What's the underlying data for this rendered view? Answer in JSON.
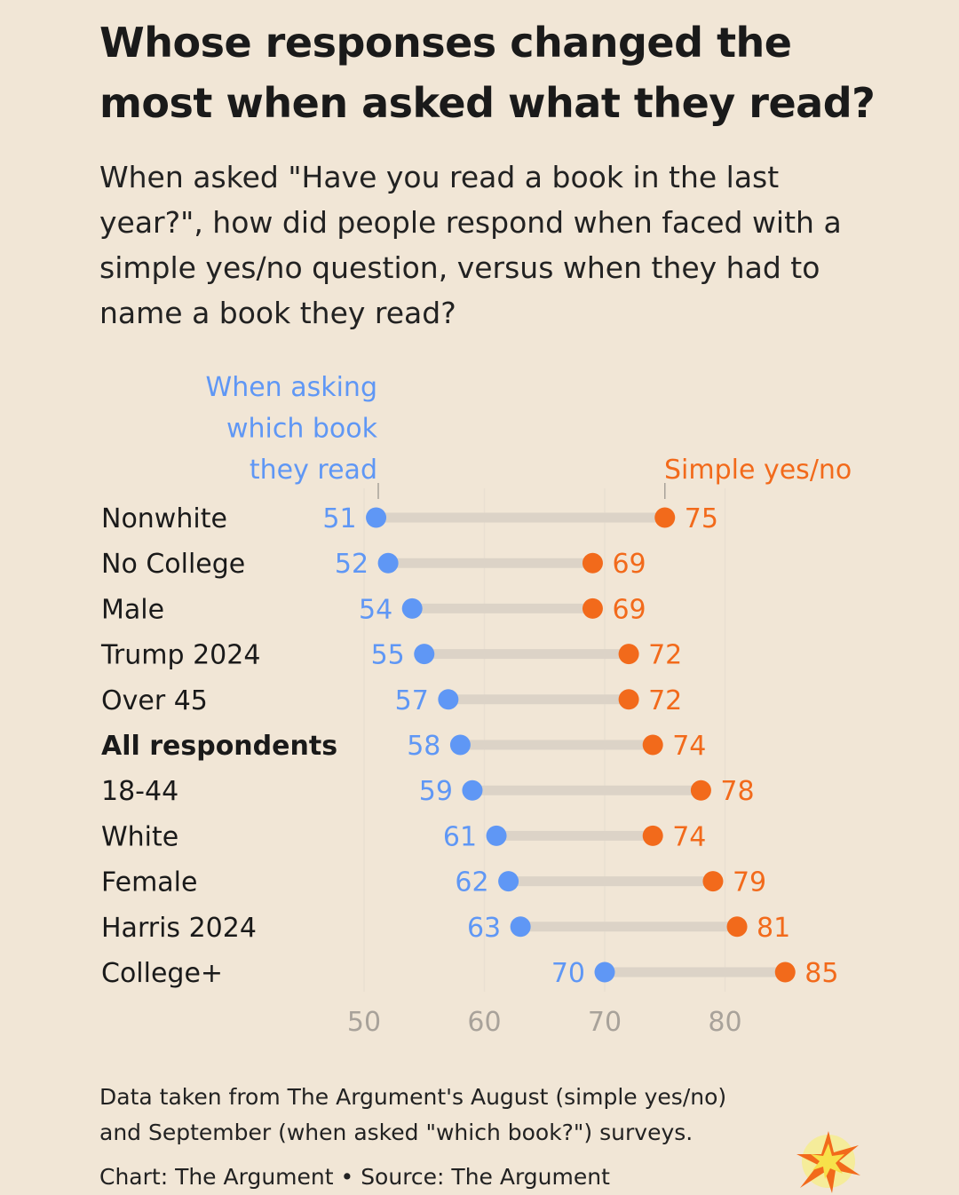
{
  "title": "Whose responses changed the most when asked what they read?",
  "subtitle": "When asked \"Have you read a book in the last year?\", how did people respond when faced with a simple yes/no question, versus when they had to name a book they read?",
  "note_line1": "Data taken from The Argument's August (simple yes/no)",
  "note_line2": "and September (when asked \"which book?\") surveys.",
  "credit": "Chart: The Argument • Source: The Argument",
  "colors": {
    "background": "#f1e6d6",
    "which_book": "#5f97f5",
    "yes_no": "#f26a1b",
    "connector": "#dcd3c7",
    "axis_label": "#a8a29a"
  },
  "chart_data": {
    "type": "dumbbell",
    "title": "Whose responses changed the most when asked what they read?",
    "series": [
      {
        "name": "When asking which book they read",
        "label_lines": [
          "When asking",
          "which book",
          "they read"
        ],
        "color": "#5f97f5"
      },
      {
        "name": "Simple yes/no",
        "label_lines": [
          "Simple yes/no"
        ],
        "color": "#f26a1b"
      }
    ],
    "categories": [
      "Nonwhite",
      "No College",
      "Male",
      "Trump 2024",
      "Over 45",
      "All respondents",
      "18-44",
      "White",
      "Female",
      "Harris 2024",
      "College+"
    ],
    "bold_categories": [
      "All respondents"
    ],
    "which_book": [
      51,
      52,
      54,
      55,
      57,
      58,
      59,
      61,
      62,
      63,
      70
    ],
    "yes_no": [
      75,
      69,
      69,
      72,
      72,
      74,
      78,
      74,
      79,
      81,
      85
    ],
    "xlim": [
      48,
      88
    ],
    "xticks": [
      50,
      60,
      70,
      80
    ],
    "grid": true,
    "unit": "%"
  }
}
